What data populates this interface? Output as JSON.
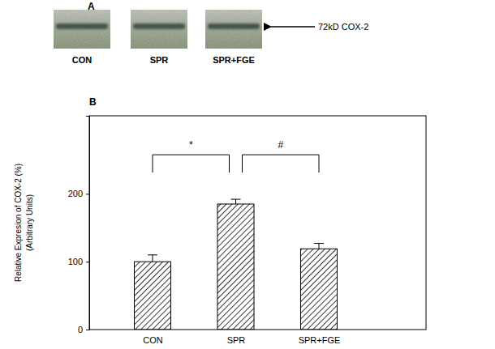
{
  "blot": {
    "panel_label": "A",
    "lanes": [
      "CON",
      "SPR",
      "SPR+FGE"
    ],
    "band_label": "72kD COX-2"
  },
  "chart_data": {
    "panel_label": "B",
    "type": "bar",
    "categories": [
      "CON",
      "SPR",
      "SPR+FGE"
    ],
    "values": [
      100,
      185,
      119
    ],
    "errors": [
      10,
      7,
      8
    ],
    "color": "#000000",
    "ylabel": [
      "Relative Expresion of COX-2 (%)",
      "(Arbitrary Units)"
    ],
    "ylim": [
      0,
      315
    ],
    "yticks": [
      0,
      100,
      200
    ],
    "annotations": [
      {
        "text": "*",
        "from": 0,
        "to": 1
      },
      {
        "text": "#",
        "from": 1,
        "to": 2
      }
    ]
  }
}
